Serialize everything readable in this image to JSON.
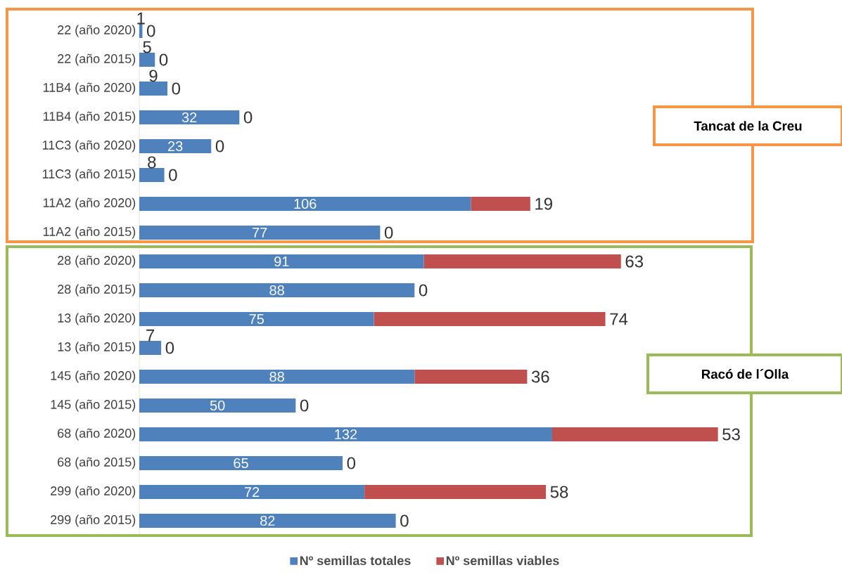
{
  "chart_data": {
    "type": "bar",
    "orientation": "horizontal",
    "stacked": true,
    "data_labels": true,
    "legend": "bottom",
    "tick_labels": "y",
    "categories": [
      "22 (año 2020)",
      "22 (año 2015)",
      "11B4 (año 2020)",
      "11B4 (año 2015)",
      "11C3 (año 2020)",
      "11C3 (año 2015)",
      "11A2 (año 2020)",
      "11A2 (año 2015)",
      "28 (año 2020)",
      "28 (año 2015)",
      "13 (año 2020)",
      "13 (año 2015)",
      "145 (año 2020)",
      "145 (año 2015)",
      "68 (año 2020)",
      "68 (año 2015)",
      "299 (año 2020)",
      "299 (año 2015)"
    ],
    "series": [
      {
        "name": "Nº semillas totales",
        "color": "#4f81bd",
        "values": [
          1,
          5,
          9,
          32,
          23,
          8,
          106,
          77,
          91,
          88,
          75,
          7,
          88,
          50,
          132,
          65,
          72,
          82
        ]
      },
      {
        "name": "Nº semillas viables",
        "color": "#c0504d",
        "values": [
          0,
          0,
          0,
          0,
          0,
          0,
          19,
          0,
          63,
          0,
          74,
          0,
          36,
          0,
          53,
          0,
          58,
          0
        ]
      }
    ],
    "annotations": [
      "Tancat de la Creu",
      "Racó de l´Olla"
    ]
  }
}
